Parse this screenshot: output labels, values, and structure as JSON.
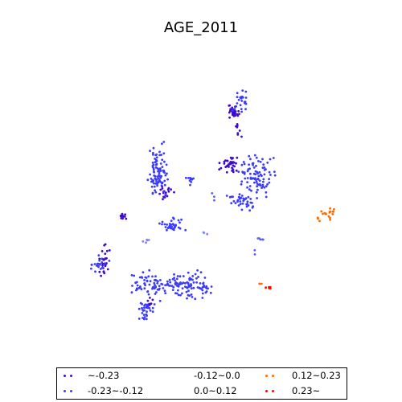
{
  "chart_data": {
    "type": "scatter",
    "title": "AGE_2011",
    "xlabel": "",
    "ylabel": "",
    "axes_visible": false,
    "grid": false,
    "legend_position": "bottom",
    "series": [
      {
        "name": "~-0.23",
        "color": "#3d0bcc",
        "clusters": [
          [
            290,
            138,
            9,
            7,
            30
          ],
          [
            285,
            205,
            10,
            8,
            35
          ],
          [
            205,
            240,
            8,
            12,
            18
          ],
          [
            130,
            320,
            6,
            18,
            28
          ],
          [
            152,
            270,
            4,
            3,
            12
          ],
          [
            298,
            160,
            5,
            12,
            10
          ],
          [
            185,
            380,
            4,
            8,
            8
          ]
        ]
      },
      {
        "name": "-0.23~-0.12",
        "color": "#3b3bff",
        "clusters": [
          [
            196,
            215,
            10,
            28,
            95
          ],
          [
            215,
            280,
            12,
            8,
            35
          ],
          [
            225,
            355,
            32,
            14,
            110
          ],
          [
            178,
            350,
            18,
            14,
            45
          ],
          [
            180,
            385,
            9,
            10,
            30
          ],
          [
            320,
            218,
            22,
            25,
            90
          ],
          [
            300,
            125,
            8,
            14,
            25
          ],
          [
            300,
            250,
            14,
            10,
            35
          ],
          [
            238,
            222,
            6,
            6,
            10
          ],
          [
            123,
            330,
            10,
            10,
            20
          ],
          [
            260,
            360,
            8,
            6,
            12
          ]
        ]
      },
      {
        "name": "-0.12~0.0",
        "color": "#5c5cff",
        "clusters": [
          [
            324,
            297,
            3,
            2,
            5
          ],
          [
            317,
            314,
            2,
            2,
            2
          ],
          [
            265,
            245,
            3,
            4,
            3
          ]
        ]
      },
      {
        "name": "0.0~0.12",
        "color": "#8080ff",
        "clusters": [
          [
            180,
            300,
            5,
            5,
            5
          ],
          [
            255,
            290,
            3,
            4,
            3
          ]
        ]
      },
      {
        "name": "0.12~0.23",
        "color": "#ff6a00",
        "clusters": [
          [
            408,
            266,
            7,
            7,
            16
          ],
          [
            396,
            273,
            2,
            3,
            3
          ],
          [
            325,
            354,
            2,
            2,
            2
          ]
        ]
      },
      {
        "name": "0.23~",
        "color": "#ee1100",
        "clusters": [
          [
            335,
            358,
            4,
            1,
            6
          ]
        ]
      }
    ]
  },
  "legend": {
    "items": [
      {
        "label": "~-0.23",
        "color": "#3d0bcc"
      },
      {
        "label": "-0.12~0.0",
        "color": "#5c5cff"
      },
      {
        "label": "0.12~0.23",
        "color": "#ff6a00"
      },
      {
        "label": "-0.23~-0.12",
        "color": "#3b3bff"
      },
      {
        "label": "0.0~0.12",
        "color": "#8080ff"
      },
      {
        "label": "0.23~",
        "color": "#ee1100"
      }
    ]
  }
}
